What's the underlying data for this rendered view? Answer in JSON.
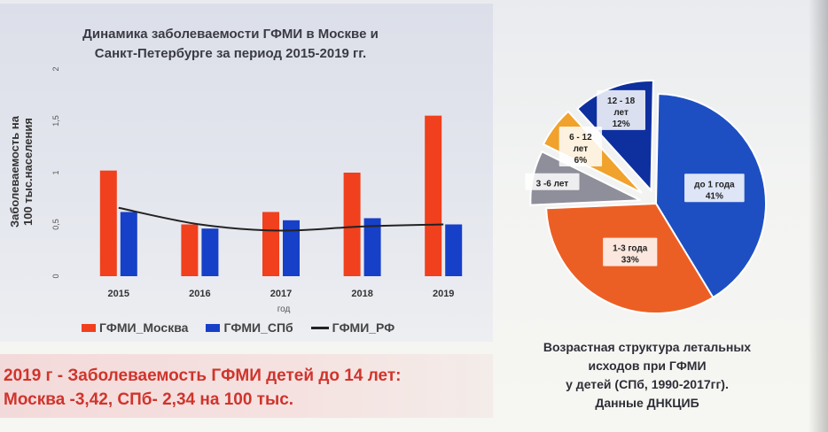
{
  "bar_chart": {
    "title_line1": "Динамика заболеваемости ГФМИ  в Москве и",
    "title_line2": "Санкт-Петербурге  за период 2015-2019 гг.",
    "ylabel": "Заболеваемость на 100 тыс.населения",
    "xlabel": "год",
    "legend": [
      {
        "label": "ГФМИ_Москва",
        "color": "#f0401d",
        "kind": "bar"
      },
      {
        "label": "ГФМИ_СПб",
        "color": "#1740c8",
        "kind": "bar"
      },
      {
        "label": "ГФМИ_РФ",
        "color": "#222222",
        "kind": "line"
      }
    ]
  },
  "chart_data": [
    {
      "type": "bar",
      "categories": [
        "2015",
        "2016",
        "2017",
        "2018",
        "2019"
      ],
      "series": [
        {
          "name": "ГФМИ_Москва",
          "type": "bar",
          "color": "#f0401d",
          "values": [
            1.02,
            0.5,
            0.62,
            1.0,
            1.55
          ]
        },
        {
          "name": "ГФМИ_СПб",
          "type": "bar",
          "color": "#1740c8",
          "values": [
            0.62,
            0.46,
            0.54,
            0.56,
            0.5
          ]
        },
        {
          "name": "ГФМИ_РФ",
          "type": "line",
          "color": "#222222",
          "values": [
            0.66,
            0.5,
            0.44,
            0.48,
            0.5
          ]
        }
      ],
      "yticks": [
        "0",
        "0,5",
        "1",
        "1,5",
        "2"
      ],
      "ylim": [
        0,
        2
      ],
      "legend_position": "bottom"
    },
    {
      "type": "pie",
      "categories": [
        "до 1 года",
        "1-3 года",
        "3 -6 лет",
        "6 - 12 лет",
        "12 - 18 лет"
      ],
      "values": [
        41,
        33,
        8,
        6,
        12
      ],
      "value_labels": [
        "41%",
        "33%",
        "",
        "6%",
        "12%"
      ],
      "colors": [
        "#1e4fc2",
        "#ec5f24",
        "#8f8f9b",
        "#f0a22c",
        "#0e2f9e"
      ],
      "label_lines": [
        [
          "до 1 года",
          "41%"
        ],
        [
          "1-3 года",
          "33%"
        ],
        [
          "3 -6 лет"
        ],
        [
          "6 - 12",
          "лет",
          "6%"
        ],
        [
          "12 - 18",
          "лет",
          "12%"
        ]
      ]
    }
  ],
  "banner": {
    "line1": "2019 г - Заболеваемость ГФМИ детей до 14 лет:",
    "line2": "Москва -3,42, СПб- 2,34 на 100 тыс."
  },
  "pie_caption": {
    "line1": "Возрастная структура летальных",
    "line2": "исходов при ГФМИ",
    "line3": "у детей  (СПб, 1990-2017гг).",
    "line4": "Данные ДНКЦИБ"
  }
}
